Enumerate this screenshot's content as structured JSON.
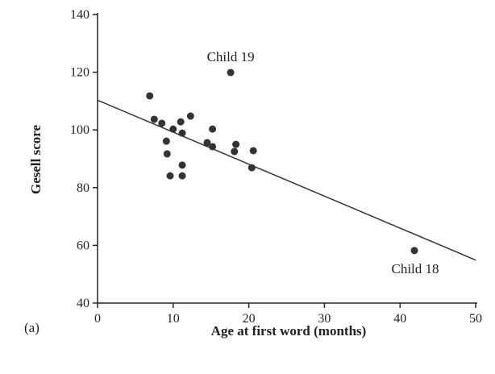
{
  "chart_data": {
    "type": "scatter",
    "panel_label": "(a)",
    "xlabel": "Age at first word (months)",
    "ylabel": "Gesell score",
    "xlim": [
      0,
      50
    ],
    "ylim": [
      40,
      140
    ],
    "xticks": [
      0,
      10,
      20,
      30,
      40,
      50
    ],
    "yticks": [
      40,
      60,
      80,
      100,
      120,
      140
    ],
    "grid": false,
    "points": [
      {
        "x": 6.9,
        "y": 111.8
      },
      {
        "x": 7.5,
        "y": 103.7
      },
      {
        "x": 8.5,
        "y": 102.3
      },
      {
        "x": 11.0,
        "y": 102.8
      },
      {
        "x": 12.3,
        "y": 104.8
      },
      {
        "x": 10.0,
        "y": 100.3
      },
      {
        "x": 11.2,
        "y": 98.9
      },
      {
        "x": 9.1,
        "y": 96.1
      },
      {
        "x": 9.2,
        "y": 91.7
      },
      {
        "x": 11.2,
        "y": 87.8
      },
      {
        "x": 9.6,
        "y": 84.1
      },
      {
        "x": 11.2,
        "y": 84.1
      },
      {
        "x": 15.2,
        "y": 100.3
      },
      {
        "x": 14.5,
        "y": 95.6
      },
      {
        "x": 15.2,
        "y": 94.2
      },
      {
        "x": 18.3,
        "y": 95.0
      },
      {
        "x": 18.1,
        "y": 92.5
      },
      {
        "x": 20.6,
        "y": 92.8
      },
      {
        "x": 20.4,
        "y": 86.9
      },
      {
        "x": 17.6,
        "y": 119.9
      },
      {
        "x": 41.9,
        "y": 58.2
      }
    ],
    "fit_line": {
      "x": [
        0,
        50
      ],
      "y": [
        110.3,
        54.9
      ]
    },
    "annotations": [
      {
        "text": "Child 19",
        "x": 17.6,
        "y": 119.9,
        "pos": "above"
      },
      {
        "text": "Child 18",
        "x": 41.9,
        "y": 58.2,
        "pos": "below"
      }
    ],
    "colors": {
      "points": "#333333",
      "line": "#333333",
      "axis": "#222222"
    }
  }
}
